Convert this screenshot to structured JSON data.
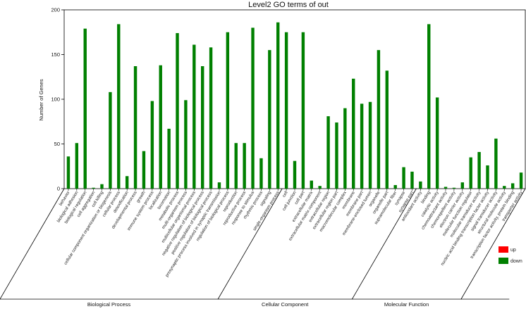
{
  "chart_data": {
    "type": "bar",
    "title": "Level2 GO terms of out",
    "ylabel": "Number of Genes",
    "xlabel": "",
    "ylim": [
      0,
      200
    ],
    "yticks": [
      0,
      50,
      100,
      150,
      200
    ],
    "grid": false,
    "legend_placement": "bottom-right",
    "colors": {
      "up": "#ff0000",
      "down": "#008000",
      "axis": "#000000"
    },
    "legend": [
      {
        "key": "up",
        "label": "up"
      },
      {
        "key": "down",
        "label": "down"
      }
    ],
    "groups": [
      {
        "name": "Biological Process",
        "categories": [
          "behavior",
          "biological adhesion",
          "biological regulation",
          "cell aggregation",
          "cell killing",
          "cellular component organization or biogenesis",
          "cellular process",
          "detoxification",
          "developmental process",
          "growth",
          "immune system process",
          "localization",
          "locomotion",
          "metabolic process",
          "multi-organism process",
          "multicellular organismal process",
          "negative regulation of biological process",
          "positive regulation of biological process",
          "presynaptic process involved in synaptic transmission",
          "regulation of biological process",
          "reproduction",
          "reproductive process",
          "response to stimulus",
          "rhythmic process",
          "signaling",
          "single-organism process"
        ],
        "down": [
          36,
          51,
          179,
          1,
          5,
          108,
          184,
          14,
          137,
          42,
          98,
          138,
          67,
          174,
          99,
          161,
          137,
          158,
          7,
          175,
          51,
          51,
          180,
          34,
          155,
          186
        ]
      },
      {
        "name": "Cellular Component",
        "categories": [
          "cell",
          "cell junction",
          "cell part",
          "extracellular matrix",
          "extracellular matrix component",
          "extracellular region",
          "extracellular region part",
          "macromolecular complex",
          "membrane",
          "membrane part",
          "membrane-enclosed lumen",
          "organelle",
          "organelle part",
          "supramolecular fiber",
          "synapse",
          "synapse part"
        ],
        "down": [
          175,
          31,
          175,
          9,
          3,
          81,
          74,
          90,
          123,
          95,
          97,
          155,
          132,
          4,
          24,
          19
        ]
      },
      {
        "name": "Molecular Function",
        "categories": [
          "antioxidant activity",
          "binding",
          "catalytic activity",
          "chemoattractant activity",
          "chemorepellent activity",
          "electron carrier activity",
          "molecular function regulator",
          "molecular transducer activity",
          "nucleic acid binding transcription factor activity",
          "signal transducer activity",
          "structural molecule activity",
          "transcription factor activity, protein binding",
          "transporter activity"
        ],
        "down": [
          8,
          184,
          102,
          2,
          1,
          7,
          35,
          41,
          26,
          56,
          3,
          6,
          18
        ]
      }
    ]
  }
}
